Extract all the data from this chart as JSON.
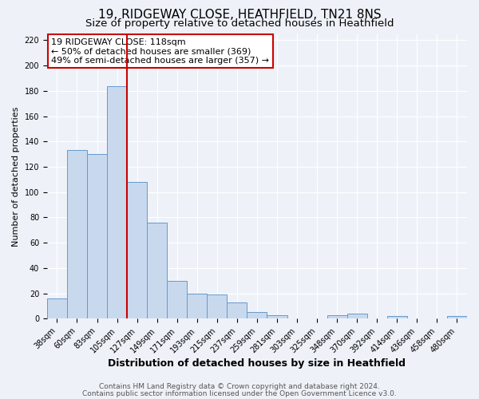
{
  "title": "19, RIDGEWAY CLOSE, HEATHFIELD, TN21 8NS",
  "subtitle": "Size of property relative to detached houses in Heathfield",
  "xlabel": "Distribution of detached houses by size in Heathfield",
  "ylabel": "Number of detached properties",
  "bar_labels": [
    "38sqm",
    "60sqm",
    "83sqm",
    "105sqm",
    "127sqm",
    "149sqm",
    "171sqm",
    "193sqm",
    "215sqm",
    "237sqm",
    "259sqm",
    "281sqm",
    "303sqm",
    "325sqm",
    "348sqm",
    "370sqm",
    "392sqm",
    "414sqm",
    "436sqm",
    "458sqm",
    "480sqm"
  ],
  "bar_values": [
    16,
    133,
    130,
    184,
    108,
    76,
    30,
    20,
    19,
    13,
    5,
    3,
    0,
    0,
    3,
    4,
    0,
    2,
    0,
    0,
    2
  ],
  "bar_color": "#c8d9ee",
  "bar_edge_color": "#6699cc",
  "ylim": [
    0,
    225
  ],
  "yticks": [
    0,
    20,
    40,
    60,
    80,
    100,
    120,
    140,
    160,
    180,
    200,
    220
  ],
  "annotation_title": "19 RIDGEWAY CLOSE: 118sqm",
  "annotation_line1": "← 50% of detached houses are smaller (369)",
  "annotation_line2": "49% of semi-detached houses are larger (357) →",
  "annotation_box_color": "#ffffff",
  "annotation_box_edge_color": "#cc0000",
  "footer1": "Contains HM Land Registry data © Crown copyright and database right 2024.",
  "footer2": "Contains public sector information licensed under the Open Government Licence v3.0.",
  "background_color": "#eef2f8",
  "plot_bg_color": "#eef2f8",
  "grid_color": "#ffffff",
  "title_fontsize": 11,
  "subtitle_fontsize": 9.5,
  "xlabel_fontsize": 9,
  "ylabel_fontsize": 8,
  "tick_fontsize": 7,
  "annotation_fontsize": 8,
  "footer_fontsize": 6.5,
  "red_line_color": "#cc0000",
  "red_line_x": 3.5
}
